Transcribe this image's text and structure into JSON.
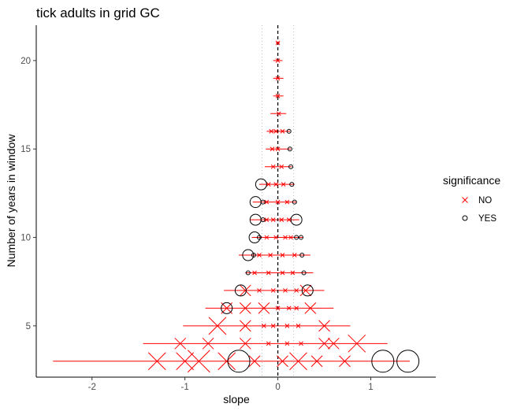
{
  "chart_data": {
    "type": "scatter",
    "title": "tick adults in grid GC",
    "xlabel": "slope",
    "ylabel": "Number of years in window",
    "xlim": [
      -2.6,
      1.7
    ],
    "ylim": [
      2.1,
      22
    ],
    "x_ticks": [
      -2,
      -1,
      0,
      1
    ],
    "x_tick_labels": [
      "-2",
      "-1",
      "0",
      "1"
    ],
    "y_ticks": [
      5,
      10,
      15,
      20
    ],
    "y_tick_labels": [
      "5",
      "10",
      "15",
      "20"
    ],
    "reference_lines": {
      "zero": 0,
      "dotted": [
        -0.17,
        0.17
      ]
    },
    "grid": false,
    "legend": {
      "title": "significance",
      "position": "right",
      "entries": [
        {
          "label": "NO",
          "marker": "cross",
          "color": "#ff0000"
        },
        {
          "label": "YES",
          "marker": "circle",
          "color": "#000000"
        }
      ]
    },
    "ranges": [
      {
        "y": 21,
        "xmin": -0.02,
        "xmax": 0.02
      },
      {
        "y": 20,
        "xmin": -0.05,
        "xmax": 0.05
      },
      {
        "y": 19,
        "xmin": -0.05,
        "xmax": 0.06
      },
      {
        "y": 18,
        "xmin": -0.05,
        "xmax": 0.06
      },
      {
        "y": 17,
        "xmin": -0.08,
        "xmax": 0.09
      },
      {
        "y": 16,
        "xmin": -0.12,
        "xmax": 0.13
      },
      {
        "y": 15,
        "xmin": -0.13,
        "xmax": 0.14
      },
      {
        "y": 14,
        "xmin": -0.14,
        "xmax": 0.15
      },
      {
        "y": 13,
        "xmin": -0.2,
        "xmax": 0.18
      },
      {
        "y": 12,
        "xmin": -0.27,
        "xmax": 0.2
      },
      {
        "y": 11,
        "xmin": -0.3,
        "xmax": 0.23
      },
      {
        "y": 10,
        "xmin": -0.28,
        "xmax": 0.27
      },
      {
        "y": 9,
        "xmin": -0.42,
        "xmax": 0.35
      },
      {
        "y": 8,
        "xmin": -0.35,
        "xmax": 0.38
      },
      {
        "y": 7,
        "xmin": -0.58,
        "xmax": 0.5
      },
      {
        "y": 6,
        "xmin": -0.78,
        "xmax": 0.6
      },
      {
        "y": 5,
        "xmin": -1.02,
        "xmax": 0.78
      },
      {
        "y": 4,
        "xmin": -1.45,
        "xmax": 1.18
      },
      {
        "y": 3,
        "xmin": -2.42,
        "xmax": 1.42
      }
    ],
    "series": [
      {
        "name": "NO",
        "points": [
          {
            "x": 0.0,
            "y": 21,
            "size": 1
          },
          {
            "x": 0.0,
            "y": 20,
            "size": 1
          },
          {
            "x": 0.0,
            "y": 19,
            "size": 1
          },
          {
            "x": 0.0,
            "y": 18,
            "size": 1
          },
          {
            "x": 0.01,
            "y": 17,
            "size": 1
          },
          {
            "x": -0.07,
            "y": 16,
            "size": 1
          },
          {
            "x": -0.02,
            "y": 16,
            "size": 1
          },
          {
            "x": 0.05,
            "y": 16,
            "size": 1
          },
          {
            "x": -0.06,
            "y": 15,
            "size": 1
          },
          {
            "x": 0.0,
            "y": 15,
            "size": 1
          },
          {
            "x": -0.05,
            "y": 14,
            "size": 1
          },
          {
            "x": 0.04,
            "y": 14,
            "size": 1
          },
          {
            "x": -0.1,
            "y": 13,
            "size": 1
          },
          {
            "x": -0.02,
            "y": 13,
            "size": 1
          },
          {
            "x": 0.06,
            "y": 13,
            "size": 1
          },
          {
            "x": -0.12,
            "y": 12,
            "size": 1
          },
          {
            "x": 0.0,
            "y": 12,
            "size": 1
          },
          {
            "x": 0.1,
            "y": 12,
            "size": 1
          },
          {
            "x": -0.12,
            "y": 11,
            "size": 1
          },
          {
            "x": -0.05,
            "y": 11,
            "size": 1
          },
          {
            "x": 0.04,
            "y": 11,
            "size": 1
          },
          {
            "x": 0.12,
            "y": 11,
            "size": 1
          },
          {
            "x": -0.12,
            "y": 10,
            "size": 1
          },
          {
            "x": -0.02,
            "y": 10,
            "size": 1
          },
          {
            "x": 0.08,
            "y": 10,
            "size": 1
          },
          {
            "x": 0.14,
            "y": 10,
            "size": 1
          },
          {
            "x": -0.2,
            "y": 9,
            "size": 1
          },
          {
            "x": -0.08,
            "y": 9,
            "size": 1
          },
          {
            "x": 0.05,
            "y": 9,
            "size": 1
          },
          {
            "x": 0.18,
            "y": 9,
            "size": 1
          },
          {
            "x": -0.25,
            "y": 8,
            "size": 1
          },
          {
            "x": -0.1,
            "y": 8,
            "size": 1
          },
          {
            "x": 0.05,
            "y": 8,
            "size": 1
          },
          {
            "x": 0.16,
            "y": 8,
            "size": 1
          },
          {
            "x": -0.35,
            "y": 7,
            "size": 2
          },
          {
            "x": -0.2,
            "y": 7,
            "size": 1
          },
          {
            "x": -0.05,
            "y": 7,
            "size": 1
          },
          {
            "x": 0.08,
            "y": 7,
            "size": 1
          },
          {
            "x": 0.2,
            "y": 7,
            "size": 1
          },
          {
            "x": 0.3,
            "y": 7,
            "size": 2
          },
          {
            "x": -0.55,
            "y": 6,
            "size": 2
          },
          {
            "x": -0.35,
            "y": 6,
            "size": 2
          },
          {
            "x": -0.15,
            "y": 6,
            "size": 2
          },
          {
            "x": 0.0,
            "y": 6,
            "size": 1
          },
          {
            "x": 0.12,
            "y": 6,
            "size": 1
          },
          {
            "x": 0.2,
            "y": 6,
            "size": 1
          },
          {
            "x": 0.35,
            "y": 6,
            "size": 2
          },
          {
            "x": -0.65,
            "y": 5,
            "size": 3
          },
          {
            "x": -0.35,
            "y": 5,
            "size": 2
          },
          {
            "x": -0.15,
            "y": 5,
            "size": 1
          },
          {
            "x": -0.05,
            "y": 5,
            "size": 1
          },
          {
            "x": 0.1,
            "y": 5,
            "size": 1
          },
          {
            "x": 0.22,
            "y": 5,
            "size": 1
          },
          {
            "x": 0.5,
            "y": 5,
            "size": 2
          },
          {
            "x": -1.05,
            "y": 4,
            "size": 2
          },
          {
            "x": -0.75,
            "y": 4,
            "size": 2
          },
          {
            "x": -0.35,
            "y": 4,
            "size": 2
          },
          {
            "x": -0.1,
            "y": 4,
            "size": 1
          },
          {
            "x": 0.1,
            "y": 4,
            "size": 1
          },
          {
            "x": 0.25,
            "y": 4,
            "size": 1
          },
          {
            "x": 0.5,
            "y": 4,
            "size": 2
          },
          {
            "x": 0.6,
            "y": 4,
            "size": 2
          },
          {
            "x": 0.85,
            "y": 4,
            "size": 3
          },
          {
            "x": -1.3,
            "y": 3,
            "size": 3
          },
          {
            "x": -1.0,
            "y": 3,
            "size": 3
          },
          {
            "x": -0.85,
            "y": 3,
            "size": 4
          },
          {
            "x": -0.55,
            "y": 3,
            "size": 3
          },
          {
            "x": -0.25,
            "y": 3,
            "size": 2
          },
          {
            "x": 0.05,
            "y": 3,
            "size": 2
          },
          {
            "x": 0.22,
            "y": 3,
            "size": 3
          },
          {
            "x": 0.42,
            "y": 3,
            "size": 2
          },
          {
            "x": 0.72,
            "y": 3,
            "size": 2
          }
        ]
      },
      {
        "name": "YES",
        "points": [
          {
            "x": 0.12,
            "y": 16,
            "size": 1
          },
          {
            "x": 0.13,
            "y": 15,
            "size": 1
          },
          {
            "x": 0.14,
            "y": 14,
            "size": 1
          },
          {
            "x": -0.18,
            "y": 13,
            "size": 2
          },
          {
            "x": 0.15,
            "y": 13,
            "size": 1
          },
          {
            "x": -0.24,
            "y": 12,
            "size": 2
          },
          {
            "x": -0.16,
            "y": 12,
            "size": 1
          },
          {
            "x": 0.18,
            "y": 12,
            "size": 1
          },
          {
            "x": -0.24,
            "y": 11,
            "size": 2
          },
          {
            "x": -0.16,
            "y": 11,
            "size": 1
          },
          {
            "x": 0.2,
            "y": 11,
            "size": 2
          },
          {
            "x": -0.25,
            "y": 10,
            "size": 2
          },
          {
            "x": -0.2,
            "y": 10,
            "size": 1
          },
          {
            "x": 0.2,
            "y": 10,
            "size": 1
          },
          {
            "x": 0.25,
            "y": 10,
            "size": 1
          },
          {
            "x": -0.32,
            "y": 9,
            "size": 2
          },
          {
            "x": -0.26,
            "y": 9,
            "size": 1
          },
          {
            "x": 0.26,
            "y": 9,
            "size": 1
          },
          {
            "x": -0.32,
            "y": 8,
            "size": 1
          },
          {
            "x": 0.28,
            "y": 8,
            "size": 1
          },
          {
            "x": -0.4,
            "y": 7,
            "size": 2
          },
          {
            "x": 0.32,
            "y": 7,
            "size": 2
          },
          {
            "x": -0.55,
            "y": 6,
            "size": 2
          },
          {
            "x": -0.42,
            "y": 3,
            "size": 4
          },
          {
            "x": 1.13,
            "y": 3,
            "size": 4
          },
          {
            "x": 1.4,
            "y": 3,
            "size": 4
          }
        ]
      }
    ]
  }
}
